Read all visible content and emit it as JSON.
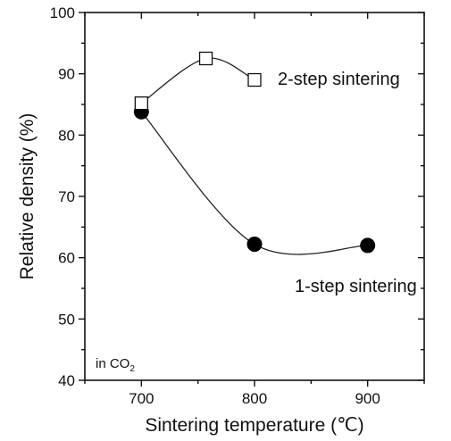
{
  "chart_data": {
    "type": "line",
    "xlabel": "Sintering temperature (℃)",
    "ylabel": "Relative density (%)",
    "xlim": [
      650,
      950
    ],
    "ylim": [
      40,
      100
    ],
    "x_ticks": [
      700,
      800,
      900
    ],
    "y_ticks": [
      40,
      50,
      60,
      70,
      80,
      90,
      100
    ],
    "annotation": {
      "prefix": "in CO",
      "subscript": "2"
    },
    "grid": false,
    "series": [
      {
        "name": "2-step sintering",
        "marker": "open-square",
        "x": [
          700,
          757,
          800
        ],
        "y": [
          85.2,
          92.5,
          89.0
        ]
      },
      {
        "name": "1-step sintering",
        "marker": "filled-circle",
        "x": [
          700,
          800,
          900
        ],
        "y": [
          83.8,
          62.2,
          62.0
        ]
      }
    ]
  }
}
